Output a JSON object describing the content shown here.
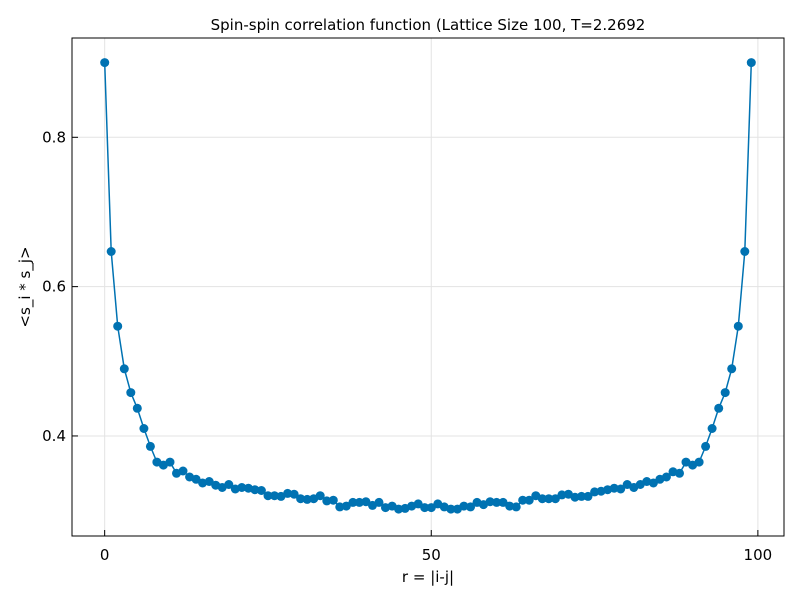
{
  "chart_data": {
    "type": "line",
    "title": "Spin-spin correlation function (Lattice Size 100, T=2.2692",
    "xlabel": "r = |i-j|",
    "ylabel": "<s_i * s_j>",
    "xlim": [
      -5,
      104
    ],
    "ylim": [
      0.266,
      0.933
    ],
    "xticks": [
      0,
      50,
      100
    ],
    "yticks": [
      0.4,
      0.6,
      0.8
    ],
    "xtick_labels": [
      "0",
      "50",
      "100"
    ],
    "ytick_labels": [
      "0.4",
      "0.6",
      "0.8"
    ],
    "grid": true,
    "legend": "none",
    "series": [
      {
        "color": "#0072b2",
        "marker": "circle",
        "x": [
          0,
          1,
          2,
          3,
          4,
          5,
          6,
          7,
          8,
          9,
          10,
          11,
          12,
          13,
          14,
          15,
          16,
          17,
          18,
          19,
          20,
          21,
          22,
          23,
          24,
          25,
          26,
          27,
          28,
          29,
          30,
          31,
          32,
          33,
          34,
          35,
          36,
          37,
          38,
          39,
          40,
          41,
          42,
          43,
          44,
          45,
          46,
          47,
          48,
          49,
          50,
          51,
          52,
          53,
          54,
          55,
          56,
          57,
          58,
          59,
          60,
          61,
          62,
          63,
          64,
          65,
          66,
          67,
          68,
          69,
          70,
          71,
          72,
          73,
          74,
          75,
          76,
          77,
          78,
          79,
          80,
          81,
          82,
          83,
          84,
          85,
          86,
          87,
          88,
          89,
          90,
          91,
          92,
          93,
          94,
          95,
          96,
          97,
          98,
          99
        ],
        "y": [
          0.9,
          0.647,
          0.547,
          0.49,
          0.458,
          0.437,
          0.41,
          0.386,
          0.365,
          0.361,
          0.365,
          0.35,
          0.353,
          0.345,
          0.342,
          0.337,
          0.339,
          0.334,
          0.331,
          0.335,
          0.329,
          0.331,
          0.33,
          0.328,
          0.327,
          0.32,
          0.32,
          0.319,
          0.323,
          0.322,
          0.316,
          0.315,
          0.316,
          0.32,
          0.313,
          0.314,
          0.305,
          0.306,
          0.311,
          0.311,
          0.312,
          0.307,
          0.311,
          0.304,
          0.306,
          0.302,
          0.303,
          0.306,
          0.309,
          0.304,
          0.304,
          0.309,
          0.305,
          0.302,
          0.302,
          0.306,
          0.305,
          0.311,
          0.308,
          0.312,
          0.311,
          0.311,
          0.306,
          0.305,
          0.314,
          0.314,
          0.32,
          0.316,
          0.316,
          0.316,
          0.321,
          0.322,
          0.318,
          0.319,
          0.319,
          0.325,
          0.326,
          0.328,
          0.33,
          0.329,
          0.335,
          0.331,
          0.335,
          0.339,
          0.337,
          0.342,
          0.345,
          0.352,
          0.35,
          0.365,
          0.361,
          0.365,
          0.386,
          0.41,
          0.437,
          0.458,
          0.49,
          0.547,
          0.647,
          0.9
        ]
      }
    ]
  }
}
